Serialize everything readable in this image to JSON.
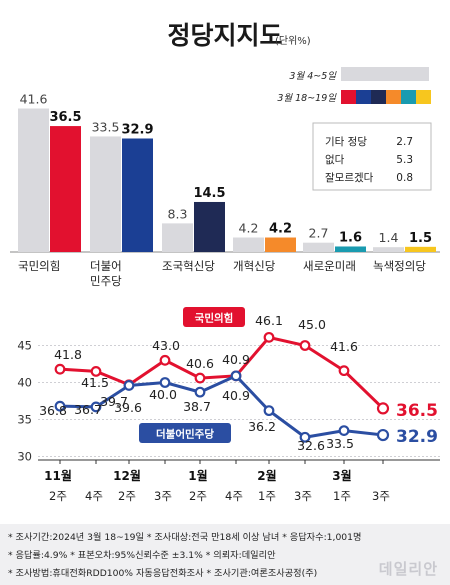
{
  "title": "정당지지도",
  "unit": "(단위%)",
  "colors": {
    "prev_bar": "#d9d9dd",
    "ppp": "#e2112f",
    "democratic": "#1b3f94",
    "rebuilding": "#1f2a55",
    "reform": "#f58a2a",
    "new_future": "#1a9bb0",
    "green_justice": "#f7c61e",
    "accent_blue": "#2b4ea2",
    "accent_red": "#e2112f"
  },
  "legend": {
    "prev_label": "3월 4~5일",
    "curr_label": "3월 18~19일",
    "curr_swatches": [
      "#e2112f",
      "#1b3f94",
      "#1f2a55",
      "#f58a2a",
      "#1a9bb0",
      "#f7c61e"
    ]
  },
  "others": [
    {
      "label": "기타 정당",
      "value": "2.7"
    },
    {
      "label": "없다",
      "value": "5.3"
    },
    {
      "label": "잘모르겠다",
      "value": "0.8"
    }
  ],
  "chart_data": [
    {
      "type": "bar",
      "categories": [
        "국민의힘",
        "더불어 민주당",
        "조국혁신당",
        "개혁신당",
        "새로운미래",
        "녹색정의당"
      ],
      "series": [
        {
          "name": "3월 4~5일",
          "values": [
            41.6,
            33.5,
            8.3,
            4.2,
            2.7,
            1.4
          ]
        },
        {
          "name": "3월 18~19일",
          "values": [
            36.5,
            32.9,
            14.5,
            4.2,
            1.6,
            1.5
          ]
        }
      ],
      "value_labels": {
        "prev": [
          "41.6",
          "33.5",
          "8.3",
          "4.2",
          "2.7",
          "1.4"
        ],
        "curr": [
          "36.5",
          "32.9",
          "14.5",
          "4.2",
          "1.6",
          "1.5"
        ]
      },
      "category_lines": [
        [
          "국민의힘"
        ],
        [
          "더불어",
          "민주당"
        ],
        [
          "조국혁신당"
        ],
        [
          "개혁신당"
        ],
        [
          "새로운미래"
        ],
        [
          "녹색정의당"
        ]
      ]
    },
    {
      "type": "line",
      "x_major": [
        "11월",
        "",
        "12월",
        "",
        "1월",
        "",
        "2월",
        "",
        "3월",
        ""
      ],
      "x_minor": [
        "2주",
        "4주",
        "2주",
        "3주",
        "2주",
        "4주",
        "1주",
        "3주",
        "1주",
        "3주"
      ],
      "ylim": [
        30,
        50
      ],
      "yticks": [
        30,
        35,
        40,
        45
      ],
      "series": [
        {
          "name": "국민의힘",
          "values": [
            41.8,
            41.5,
            39.7,
            43.0,
            40.6,
            40.9,
            46.1,
            45.0,
            41.6,
            36.5
          ],
          "labels": [
            "41.8",
            "41.5",
            "39.7",
            "43.0",
            "40.6",
            "40.9",
            "46.1",
            "45.0",
            "41.6",
            "36.5"
          ]
        },
        {
          "name": "더불어민주당",
          "values": [
            36.8,
            36.7,
            39.6,
            40.0,
            38.7,
            40.9,
            36.2,
            32.6,
            33.5,
            32.9
          ],
          "labels": [
            "36.8",
            "36.7",
            "39.6",
            "40.0",
            "38.7",
            "40.9",
            "36.2",
            "32.6",
            "33.5",
            "32.9"
          ]
        }
      ]
    }
  ],
  "footer": {
    "line1": "* 조사기간:2024년 3월 18~19일  * 조사대상:전국 만18세 이상 남녀  * 응답자수:1,001명",
    "line2": "* 응답률:4.9%  * 표본오차:95%신뢰수준 ±3.1%  * 의뢰자:데일리안",
    "line3": "* 조사방법:휴대전화RDD100% 자동응답전화조사  * 조사기관:여론조사공정(주)"
  },
  "watermark": "데일리안"
}
